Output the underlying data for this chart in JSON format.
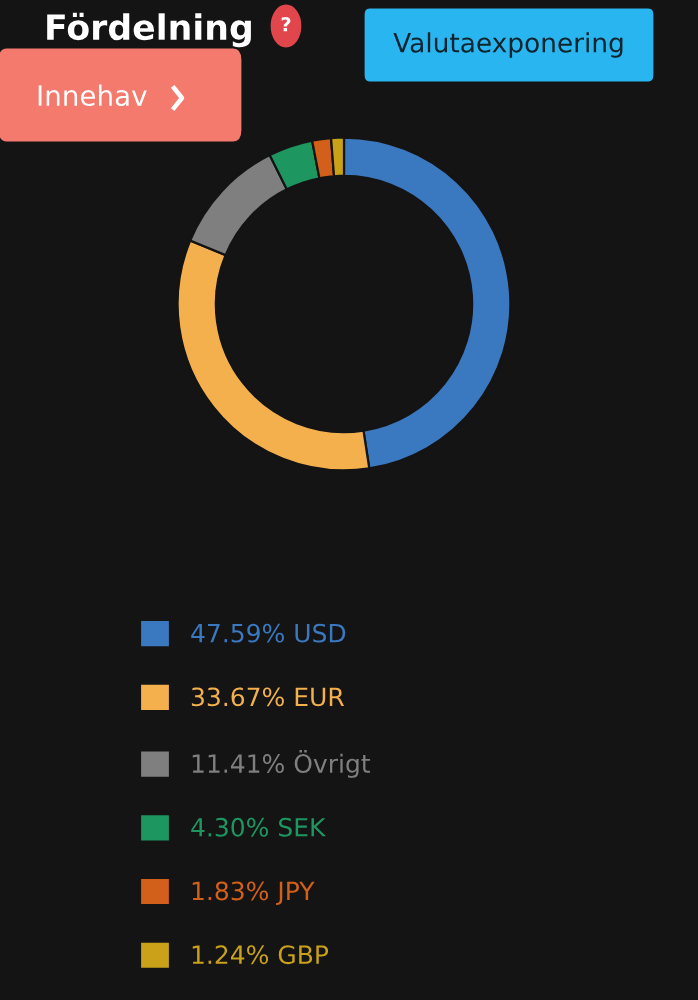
{
  "chart_data": {
    "type": "donut",
    "title": "Fördelning",
    "categories": [
      "USD",
      "EUR",
      "Övrigt",
      "SEK",
      "JPY",
      "GBP"
    ],
    "values": [
      47.59,
      33.67,
      11.41,
      4.3,
      1.83,
      1.24
    ],
    "value_labels": [
      "47.59%",
      "33.67%",
      "11.41%",
      "4.30%",
      "1.83%",
      "1.24%"
    ],
    "colors": [
      "#3a78c0",
      "#f5b04e",
      "#7f7f7f",
      "#1e9660",
      "#d2601a",
      "#c9a21a"
    ],
    "legend": "bottom",
    "annotations": [
      "Innehav",
      "Valutaexponering",
      "?"
    ]
  }
}
